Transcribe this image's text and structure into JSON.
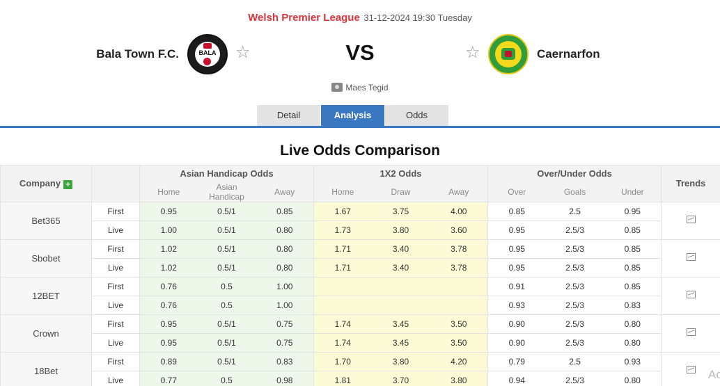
{
  "match": {
    "league": "Welsh Premier League",
    "datetime": "31-12-2024 19:30 Tuesday",
    "home_team": "Bala Town F.C.",
    "away_team": "Caernarfon",
    "vs": "VS",
    "venue": "Maes Tegid",
    "home_logo_text": "BALA"
  },
  "tabs": [
    "Detail",
    "Analysis",
    "Odds"
  ],
  "active_tab": "Analysis",
  "section_title": "Live Odds Comparison",
  "table": {
    "company_header": "Company",
    "plus_icon": "+",
    "trends_header": "Trends",
    "groups": [
      "Asian Handicap Odds",
      "1X2 Odds",
      "Over/Under Odds"
    ],
    "sub_headers": [
      "Home",
      "Asian Handicap",
      "Away",
      "Home",
      "Draw",
      "Away",
      "Over",
      "Goals",
      "Under"
    ],
    "rows": [
      {
        "company": "Bet365",
        "lines": [
          {
            "type": "First",
            "ah": [
              "0.95",
              "0.5/1",
              "0.85"
            ],
            "x12": [
              "1.67",
              "3.75",
              "4.00"
            ],
            "ou": [
              "0.85",
              "2.5",
              "0.95"
            ]
          },
          {
            "type": "Live",
            "ah": [
              "1.00",
              "0.5/1",
              "0.80"
            ],
            "x12": [
              "1.73",
              "3.80",
              "3.60"
            ],
            "ou": [
              "0.95",
              "2.5/3",
              "0.85"
            ]
          }
        ]
      },
      {
        "company": "Sbobet",
        "lines": [
          {
            "type": "First",
            "ah": [
              "1.02",
              "0.5/1",
              "0.80"
            ],
            "x12": [
              "1.71",
              "3.40",
              "3.78"
            ],
            "ou": [
              "0.95",
              "2.5/3",
              "0.85"
            ]
          },
          {
            "type": "Live",
            "ah": [
              "1.02",
              "0.5/1",
              "0.80"
            ],
            "x12": [
              "1.71",
              "3.40",
              "3.78"
            ],
            "ou": [
              "0.95",
              "2.5/3",
              "0.85"
            ]
          }
        ]
      },
      {
        "company": "12BET",
        "lines": [
          {
            "type": "First",
            "ah": [
              "0.76",
              "0.5",
              "1.00"
            ],
            "x12": [
              "",
              "",
              ""
            ],
            "ou": [
              "0.91",
              "2.5/3",
              "0.85"
            ]
          },
          {
            "type": "Live",
            "ah": [
              "0.76",
              "0.5",
              "1.00"
            ],
            "x12": [
              "",
              "",
              ""
            ],
            "ou": [
              "0.93",
              "2.5/3",
              "0.83"
            ]
          }
        ]
      },
      {
        "company": "Crown",
        "lines": [
          {
            "type": "First",
            "ah": [
              "0.95",
              "0.5/1",
              "0.75"
            ],
            "x12": [
              "1.74",
              "3.45",
              "3.50"
            ],
            "ou": [
              "0.90",
              "2.5/3",
              "0.80"
            ]
          },
          {
            "type": "Live",
            "ah": [
              "0.95",
              "0.5/1",
              "0.75"
            ],
            "x12": [
              "1.74",
              "3.45",
              "3.50"
            ],
            "ou": [
              "0.90",
              "2.5/3",
              "0.80"
            ]
          }
        ]
      },
      {
        "company": "18Bet",
        "lines": [
          {
            "type": "First",
            "ah": [
              "0.89",
              "0.5/1",
              "0.83"
            ],
            "x12": [
              "1.70",
              "3.80",
              "4.20"
            ],
            "ou": [
              "0.79",
              "2.5",
              "0.93"
            ]
          },
          {
            "type": "Live",
            "ah": [
              "0.77",
              "0.5",
              "0.98"
            ],
            "x12": [
              "1.81",
              "3.70",
              "3.80"
            ],
            "ou": [
              "0.94",
              "2.5/3",
              "0.80"
            ]
          }
        ]
      }
    ]
  },
  "watermark": "Ac",
  "colors": {
    "accent": "#3a78c2",
    "league": "#d9363e",
    "ah_bg": "#eef8ea",
    "x12_bg": "#fdfbd6"
  }
}
